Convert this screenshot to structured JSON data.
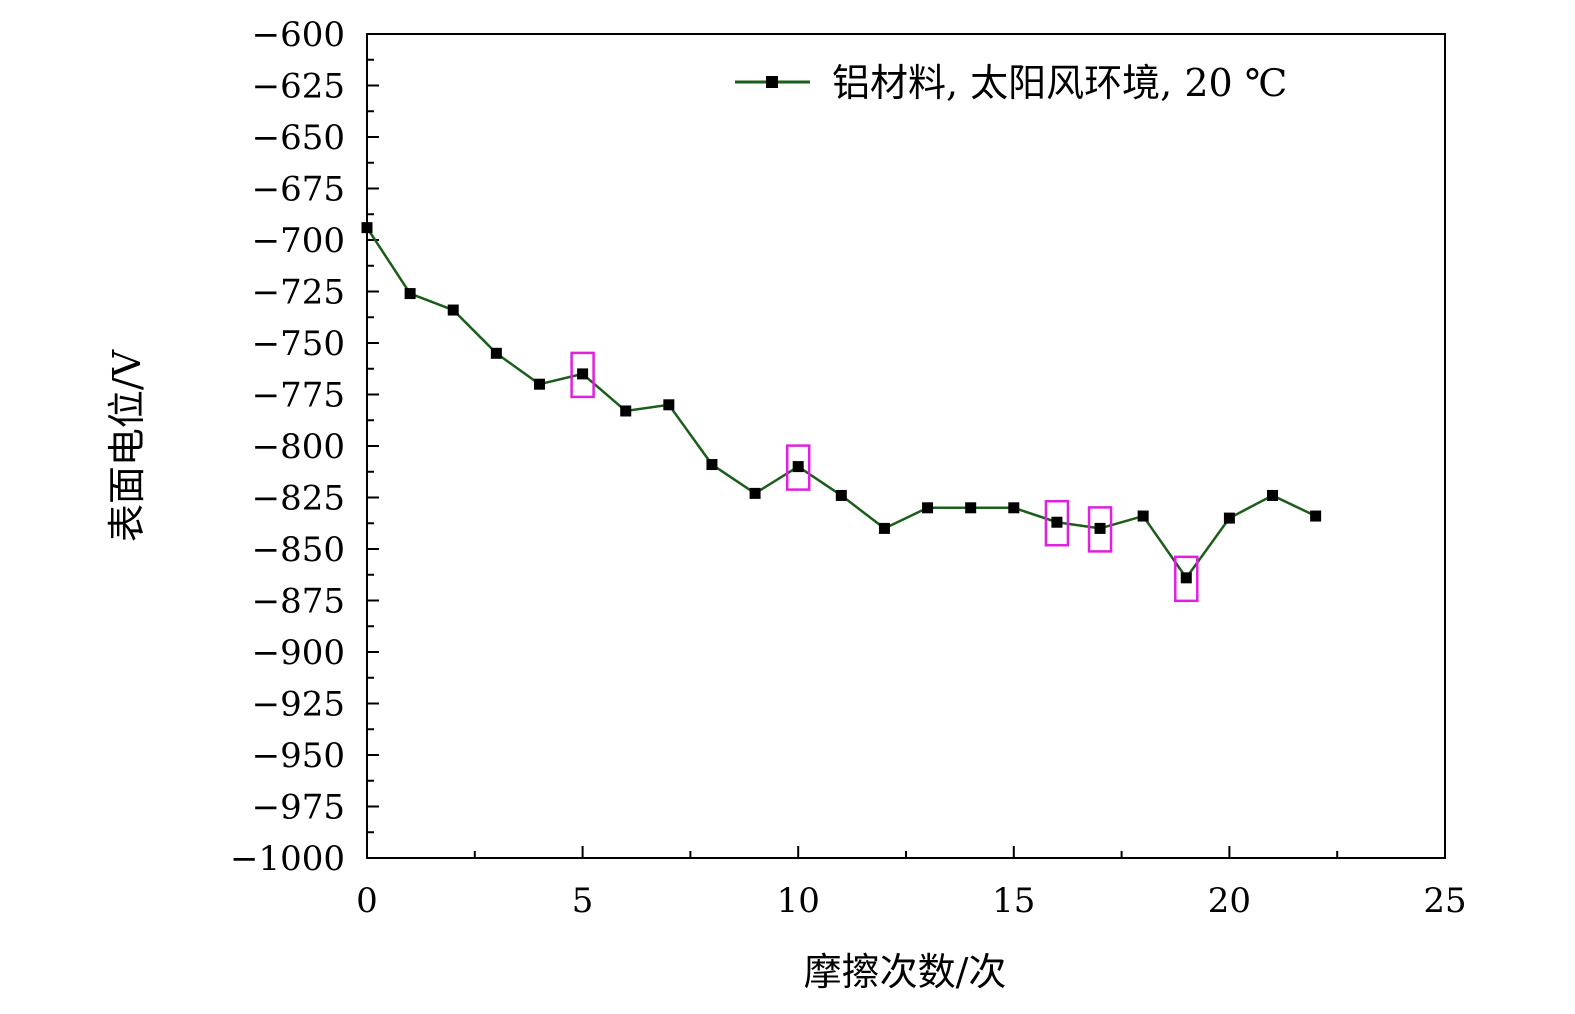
{
  "chart_data": {
    "type": "line",
    "xlabel": "摩擦次数/次",
    "ylabel": "表面电位/V",
    "xlim": [
      0,
      25
    ],
    "ylim": [
      -1000,
      -600
    ],
    "x_ticks": [
      "0",
      "5",
      "10",
      "15",
      "20",
      "25"
    ],
    "y_ticks": [
      "−600",
      "−625",
      "−650",
      "−675",
      "−700",
      "−725",
      "−750",
      "−775",
      "−800",
      "−825",
      "−850",
      "−875",
      "−900",
      "−925",
      "−950",
      "−975",
      "−1000"
    ],
    "grid": false,
    "legend_position": "top-right",
    "series": [
      {
        "name": "铝材料, 太阳风环境, 20 ℃",
        "color": "#1a5e1a",
        "marker": "square",
        "x": [
          0,
          1,
          2,
          3,
          4,
          5,
          6,
          7,
          8,
          9,
          10,
          11,
          12,
          13,
          14,
          15,
          16,
          17,
          18,
          19,
          20,
          21,
          22
        ],
        "y": [
          -694,
          -726,
          -734,
          -755,
          -770,
          -765,
          -783,
          -780,
          -809,
          -823,
          -810,
          -824,
          -840,
          -830,
          -830,
          -830,
          -837,
          -840,
          -834,
          -864,
          -835,
          -824,
          -834
        ]
      }
    ],
    "highlighted_x": [
      5,
      10,
      16,
      17,
      19
    ],
    "highlight_color": "#e020e0"
  }
}
